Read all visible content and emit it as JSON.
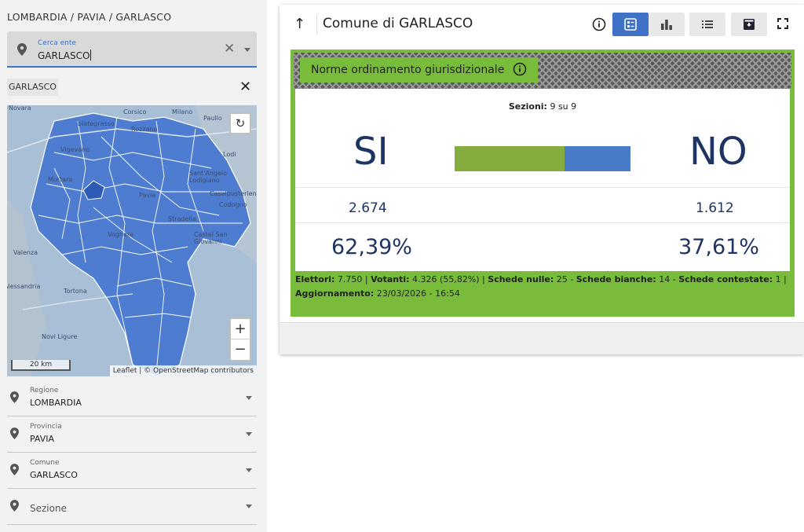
{
  "breadcrumb": "LOMBARDIA / PAVIA / GARLASCO",
  "search": {
    "label": "Cerca ente",
    "value": "GARLASCO"
  },
  "chip": {
    "label": "GARLASCO"
  },
  "map": {
    "places": [
      "Novara",
      "biategrasso",
      "Corsico",
      "Rozzano",
      "Milano",
      "Paullo",
      "Vigevano",
      "Lodi",
      "Sant'Angelo Lodigiano",
      "Casalpusterlengo",
      "Codogno",
      "Castel San Giovanni",
      "Valenza",
      "Alessandria",
      "Tortona",
      "Novi Ligure",
      "Pavia",
      "Voghera",
      "Stradella",
      "Mortara"
    ],
    "scale": "20 km",
    "attribution": "Leaflet | © OpenStreetMap contributors",
    "zoom_in": "+",
    "zoom_out": "−"
  },
  "fields": {
    "regione": {
      "label": "Regione",
      "value": "LOMBARDIA"
    },
    "provincia": {
      "label": "Provincia",
      "value": "PAVIA"
    },
    "comune": {
      "label": "Comune",
      "value": "GARLASCO"
    },
    "sezione": {
      "label": "Sezione"
    }
  },
  "card": {
    "title": "Comune di GARLASCO",
    "subject": "Norme ordinamento giurisdizionale",
    "sezioni_label": "Sezioni:",
    "sezioni_value": "9 su 9",
    "si_label": "SI",
    "no_label": "NO",
    "si_count": "2.674",
    "no_count": "1.612",
    "si_pct": "62,39%",
    "no_pct": "37,61%",
    "si_share": 0.6239,
    "footer": {
      "elettori_label": "Elettori:",
      "elettori": "7.750",
      "votanti_label": "Votanti:",
      "votanti": "4.326 (55,82%)",
      "nulle_label": "Schede nulle:",
      "nulle": "25",
      "bianche_label": "Schede bianche:",
      "bianche": "14",
      "contestate_label": "Schede contestate:",
      "contestate": "1",
      "aggiornamento_label": "Aggiornamento:",
      "aggiornamento": "23/03/2026 - 16:54"
    }
  },
  "colors": {
    "accent": "#3f72c6",
    "green": "#79bc3b",
    "si_bar": "#86ab3f",
    "no_bar": "#4a7bc9",
    "title_blue": "#1f3463"
  },
  "icons": [
    "pin-icon",
    "close-icon",
    "refresh-icon",
    "info-icon",
    "list-view-icon",
    "bar-chart-icon",
    "list-icon",
    "archive-icon",
    "fullscreen-icon",
    "arrow-up-icon"
  ]
}
